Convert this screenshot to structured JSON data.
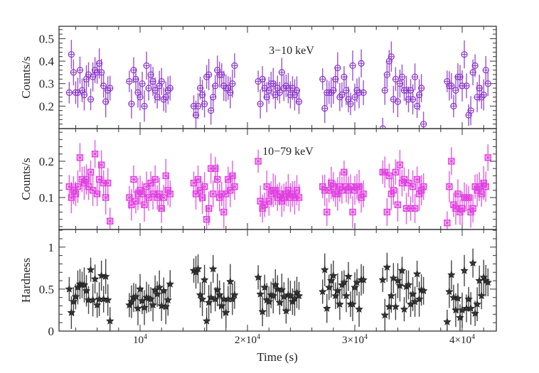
{
  "chart_data": {
    "type": "scatter",
    "xlabel": "Time (s)",
    "xlim": [
      2450,
      43180
    ],
    "xticks": [
      {
        "value": 10000,
        "base": "10",
        "exp": "4"
      },
      {
        "value": 20000,
        "base": "2×10",
        "exp": "4"
      },
      {
        "value": 30000,
        "base": "3×10",
        "exp": "4"
      },
      {
        "value": 40000,
        "base": "4×10",
        "exp": "4"
      }
    ],
    "time": [
      3400,
      3600,
      3800,
      4000,
      4200,
      4400,
      4600,
      4800,
      5000,
      5200,
      5400,
      5600,
      5800,
      6000,
      6200,
      6400,
      6600,
      6800,
      7000,
      7200,
      9000,
      9200,
      9400,
      9600,
      9800,
      10000,
      10200,
      10400,
      10600,
      10800,
      11000,
      11200,
      11400,
      11600,
      11800,
      12000,
      12200,
      12400,
      12600,
      12800,
      15000,
      15200,
      15400,
      15600,
      15800,
      16000,
      16200,
      16400,
      16600,
      16800,
      17000,
      17200,
      17400,
      17600,
      17800,
      18000,
      18200,
      18400,
      18600,
      18800,
      21000,
      21200,
      21400,
      21600,
      21800,
      22000,
      22200,
      22400,
      22600,
      22800,
      23000,
      23200,
      23400,
      23600,
      23800,
      24000,
      24200,
      24400,
      24600,
      24800,
      27000,
      27200,
      27400,
      27600,
      27800,
      28000,
      28200,
      28400,
      28600,
      28800,
      29000,
      29200,
      29400,
      29600,
      29800,
      30000,
      30200,
      30400,
      30600,
      30800,
      32600,
      32800,
      33000,
      33200,
      33400,
      33600,
      33800,
      34000,
      34200,
      34400,
      34600,
      34800,
      35000,
      35200,
      35400,
      35600,
      35800,
      36000,
      36200,
      36400,
      38600,
      38800,
      39000,
      39200,
      39400,
      39600,
      39800,
      40000,
      40200,
      40400,
      40600,
      40800,
      41000,
      41200,
      41400,
      41600,
      41800,
      42000,
      42200,
      42400
    ],
    "panels": [
      {
        "label": "3−10 keV",
        "ylabel": "Counts/s",
        "ylim": [
          0.1,
          0.555
        ],
        "yticks": [
          0.2,
          0.3,
          0.4,
          0.5
        ],
        "marker": "circle-cross",
        "color": "#8a35c8",
        "typical_error": 0.06,
        "values": [
          0.26,
          0.43,
          0.35,
          0.26,
          0.26,
          0.36,
          0.27,
          0.25,
          0.32,
          0.34,
          0.23,
          0.33,
          0.36,
          0.35,
          0.39,
          0.35,
          0.29,
          0.22,
          0.27,
          0.28,
          0.31,
          0.21,
          0.36,
          0.32,
          0.26,
          0.24,
          0.3,
          0.2,
          0.38,
          0.28,
          0.34,
          0.31,
          0.27,
          0.24,
          0.29,
          0.31,
          0.23,
          0.24,
          0.27,
          0.28,
          0.2,
          0.16,
          0.2,
          0.28,
          0.25,
          0.21,
          0.33,
          0.34,
          0.18,
          0.24,
          0.29,
          0.36,
          0.34,
          0.34,
          0.29,
          0.28,
          0.28,
          0.26,
          0.3,
          0.38,
          0.31,
          0.21,
          0.32,
          0.28,
          0.24,
          0.27,
          0.3,
          0.3,
          0.25,
          0.28,
          0.26,
          0.35,
          0.28,
          0.29,
          0.28,
          0.25,
          0.28,
          0.25,
          0.27,
          0.22,
          0.32,
          0.19,
          0.26,
          0.26,
          0.26,
          0.27,
          0.32,
          0.37,
          0.24,
          0.25,
          0.33,
          0.27,
          0.23,
          0.21,
          0.38,
          0.24,
          0.27,
          0.26,
          0.39,
          0.26,
          0.1,
          0.27,
          0.34,
          0.4,
          0.42,
          0.23,
          0.32,
          0.22,
          0.3,
          0.33,
          0.27,
          0.27,
          0.23,
          0.27,
          0.23,
          0.33,
          0.2,
          0.25,
          0.28,
          0.12,
          0.31,
          0.29,
          0.29,
          0.2,
          0.27,
          0.33,
          0.33,
          0.29,
          0.43,
          0.29,
          0.16,
          0.18,
          0.35,
          0.38,
          0.24,
          0.28,
          0.24,
          0.25,
          0.36,
          0.3
        ]
      },
      {
        "label": "10−79 keV",
        "ylabel": "Counts/s",
        "ylim": [
          0.012,
          0.29
        ],
        "yticks": [
          0.1,
          0.2
        ],
        "marker": "square-x",
        "color": "#e040e0",
        "typical_error": 0.04,
        "values": [
          0.13,
          0.1,
          0.12,
          0.11,
          0.13,
          0.21,
          0.15,
          0.14,
          0.15,
          0.13,
          0.17,
          0.12,
          0.22,
          0.11,
          0.15,
          0.19,
          0.14,
          0.1,
          0.14,
          0.035,
          0.1,
          0.08,
          0.15,
          0.09,
          0.11,
          0.12,
          0.11,
          0.08,
          0.13,
          0.1,
          0.14,
          0.11,
          0.15,
          0.1,
          0.11,
          0.07,
          0.1,
          0.16,
          0.12,
          0.11,
          0.14,
          0.11,
          0.15,
          0.12,
          0.1,
          0.13,
          0.04,
          0.07,
          0.18,
          0.11,
          0.18,
          0.15,
          0.1,
          0.11,
          0.06,
          0.11,
          0.15,
          0.12,
          0.16,
          0.13,
          0.2,
          0.09,
          0.07,
          0.08,
          0.13,
          0.09,
          0.11,
          0.12,
          0.12,
          0.1,
          0.11,
          0.09,
          0.1,
          0.11,
          0.12,
          0.1,
          0.11,
          0.1,
          0.12,
          0.1,
          0.13,
          0.12,
          0.06,
          0.12,
          0.14,
          0.13,
          0.11,
          0.11,
          0.13,
          0.12,
          0.17,
          0.13,
          0.12,
          0.13,
          0.06,
          0.12,
          0.13,
          0.13,
          0.1,
          0.11,
          0.17,
          0.17,
          0.06,
          0.16,
          0.11,
          0.12,
          0.17,
          0.08,
          0.19,
          0.14,
          0.15,
          0.07,
          0.14,
          0.07,
          0.13,
          0.07,
          0.15,
          0.11,
          0.12,
          0.13,
          0.03,
          0.13,
          0.2,
          0.08,
          0.07,
          0.11,
          0.06,
          0.07,
          0.1,
          0.1,
          0.1,
          0.06,
          0.07,
          0.13,
          0.12,
          0.13,
          0.11,
          0.14,
          0.13,
          0.21
        ]
      },
      {
        "label": "",
        "ylabel": "Hardness",
        "ylim": [
          0,
          1.21
        ],
        "yticks": [
          0,
          0.5,
          1
        ],
        "marker": "star",
        "color": "#222222",
        "typical_error": 0.18,
        "values": [
          0.5,
          0.22,
          0.35,
          0.41,
          0.52,
          0.56,
          0.55,
          0.55,
          0.48,
          0.37,
          0.73,
          0.37,
          0.62,
          0.31,
          0.38,
          0.66,
          0.38,
          0.65,
          0.37,
          0.12,
          0.31,
          0.35,
          0.4,
          0.41,
          0.27,
          0.5,
          0.36,
          0.28,
          0.4,
          0.39,
          0.38,
          0.31,
          0.49,
          0.44,
          0.52,
          0.3,
          0.48,
          0.29,
          0.37,
          0.56,
          0.72,
          0.7,
          0.74,
          0.43,
          0.38,
          0.61,
          0.12,
          0.34,
          0.4,
          0.74,
          0.38,
          0.49,
          0.43,
          0.3,
          0.38,
          0.22,
          0.38,
          0.59,
          0.38,
          0.43,
          0.64,
          0.44,
          0.23,
          0.52,
          0.37,
          0.35,
          0.43,
          0.42,
          0.55,
          0.5,
          0.34,
          0.49,
          0.41,
          0.24,
          0.43,
          0.42,
          0.35,
          0.39,
          0.46,
          0.42,
          0.47,
          0.73,
          0.27,
          0.52,
          0.6,
          0.66,
          0.42,
          0.48,
          0.32,
          0.55,
          0.58,
          0.42,
          0.65,
          0.32,
          0.32,
          0.52,
          0.58,
          0.26,
          0.61,
          0.61,
          0.61,
          0.19,
          0.76,
          0.29,
          0.42,
          0.63,
          0.29,
          0.6,
          0.54,
          0.72,
          0.26,
          0.53,
          0.55,
          0.32,
          0.44,
          0.35,
          0.68,
          0.38,
          0.49,
          0.48,
          0.11,
          0.47,
          0.67,
          0.4,
          0.25,
          0.39,
          0.16,
          0.25,
          0.72,
          0.27,
          0.38,
          0.27,
          0.81,
          0.21,
          0.32,
          0.6,
          0.42,
          0.64,
          0.6,
          0.58
        ]
      }
    ],
    "grid": false,
    "legend": "none"
  }
}
